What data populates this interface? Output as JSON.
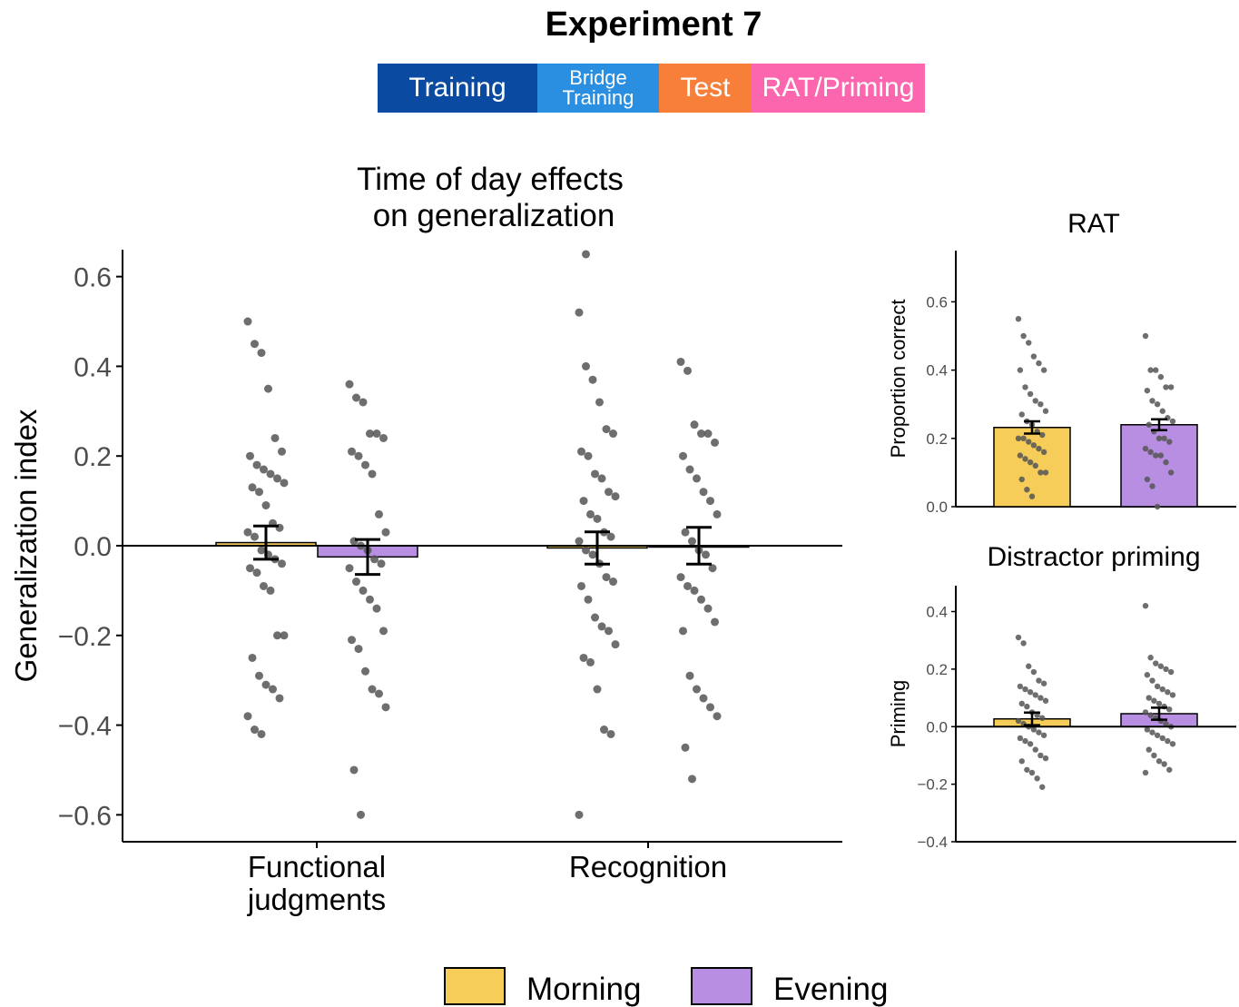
{
  "header": {
    "title": "Experiment 7",
    "phases": [
      {
        "label": "Training",
        "color": "#0a4aa0"
      },
      {
        "label": "Bridge Training",
        "color": "#2a8fe0"
      },
      {
        "label": "Test",
        "color": "#f77f39"
      },
      {
        "label": "RAT/Priming",
        "color": "#fc66ae"
      }
    ]
  },
  "colors": {
    "morning": "#f7cd5a",
    "evening": "#b88ee2",
    "points": "#555555"
  },
  "legend": {
    "morning": "Morning",
    "evening": "Evening"
  },
  "chart_data": [
    {
      "type": "bar",
      "title_line1": "Time of day effects",
      "title_line2": "on generalization",
      "ylabel": "Generalization index",
      "ylim": [
        -0.66,
        0.66
      ],
      "yticks": [
        "0.6",
        "0.4",
        "0.2",
        "0.0",
        "−0.2",
        "−0.4",
        "−0.6"
      ],
      "categories": [
        "Functional judgments",
        "Recognition"
      ],
      "category_lines": [
        [
          "Functional",
          "judgments"
        ],
        [
          "Recognition"
        ]
      ],
      "series": [
        {
          "name": "Morning",
          "values": [
            0.007,
            -0.005
          ],
          "errors": [
            0.037,
            0.036
          ]
        },
        {
          "name": "Evening",
          "values": [
            -0.025,
            0.0
          ],
          "errors": [
            0.039,
            0.041
          ]
        }
      ],
      "points": {
        "Functional judgments": {
          "Morning": [
            0.5,
            0.45,
            0.43,
            0.35,
            0.24,
            0.21,
            0.2,
            0.18,
            0.17,
            0.16,
            0.15,
            0.14,
            0.13,
            0.12,
            0.09,
            0.05,
            0.04,
            0.03,
            0.02,
            -0.01,
            -0.02,
            -0.03,
            -0.04,
            -0.05,
            -0.06,
            -0.09,
            -0.1,
            -0.2,
            -0.2,
            -0.25,
            -0.29,
            -0.31,
            -0.32,
            -0.34,
            -0.38,
            -0.41,
            -0.42
          ],
          "Evening": [
            0.36,
            0.33,
            0.32,
            0.25,
            0.25,
            0.24,
            0.21,
            0.2,
            0.18,
            0.16,
            0.07,
            0.03,
            0.01,
            0.0,
            -0.01,
            -0.03,
            -0.04,
            -0.05,
            -0.08,
            -0.1,
            -0.12,
            -0.14,
            -0.19,
            -0.21,
            -0.23,
            -0.28,
            -0.32,
            -0.33,
            -0.36,
            -0.5,
            -0.6
          ]
        },
        "Recognition": {
          "Morning": [
            0.52,
            0.4,
            0.37,
            0.32,
            0.26,
            0.25,
            0.21,
            0.2,
            0.16,
            0.15,
            0.12,
            0.11,
            0.1,
            0.07,
            0.06,
            0.03,
            0.02,
            0.01,
            -0.01,
            -0.02,
            -0.04,
            -0.07,
            -0.08,
            -0.09,
            -0.12,
            -0.16,
            -0.18,
            -0.19,
            -0.22,
            -0.25,
            -0.26,
            -0.32,
            -0.41,
            -0.42,
            -0.6,
            0.65
          ],
          "Evening": [
            0.41,
            0.39,
            0.27,
            0.25,
            0.25,
            0.23,
            0.2,
            0.17,
            0.15,
            0.12,
            0.1,
            0.07,
            0.03,
            0.01,
            -0.01,
            -0.02,
            -0.05,
            -0.07,
            -0.09,
            -0.1,
            -0.12,
            -0.14,
            -0.17,
            -0.19,
            -0.29,
            -0.32,
            -0.34,
            -0.36,
            -0.38,
            -0.45,
            -0.52
          ]
        }
      }
    },
    {
      "type": "bar",
      "title": "RAT",
      "ylabel": "Proportion correct",
      "ylim": [
        0,
        0.75
      ],
      "yticks": [
        "0.0",
        "0.2",
        "0.4",
        "0.6"
      ],
      "categories": [
        "Morning",
        "Evening"
      ],
      "series": [
        {
          "name": "",
          "values": [
            0.232,
            0.24
          ],
          "errors": [
            0.018,
            0.016
          ]
        }
      ],
      "points": {
        "Morning": [
          0.55,
          0.5,
          0.48,
          0.44,
          0.42,
          0.4,
          0.4,
          0.35,
          0.33,
          0.31,
          0.3,
          0.28,
          0.27,
          0.25,
          0.24,
          0.22,
          0.21,
          0.2,
          0.2,
          0.19,
          0.18,
          0.17,
          0.16,
          0.15,
          0.14,
          0.13,
          0.12,
          0.1,
          0.1,
          0.08,
          0.05,
          0.03
        ],
        "Evening": [
          0.5,
          0.4,
          0.4,
          0.38,
          0.35,
          0.35,
          0.34,
          0.31,
          0.3,
          0.28,
          0.26,
          0.25,
          0.24,
          0.22,
          0.2,
          0.2,
          0.19,
          0.17,
          0.16,
          0.15,
          0.15,
          0.13,
          0.1,
          0.08,
          0.06,
          0.0
        ]
      }
    },
    {
      "type": "bar",
      "title": "Distractor priming",
      "ylabel": "Priming",
      "ylim": [
        -0.4,
        0.49
      ],
      "yticks": [
        "0.4",
        "0.2",
        "0.0",
        "−0.2",
        "−0.4"
      ],
      "categories": [
        "Morning",
        "Evening"
      ],
      "series": [
        {
          "name": "",
          "values": [
            0.027,
            0.045
          ],
          "errors": [
            0.022,
            0.021
          ]
        }
      ],
      "points": {
        "Morning": [
          0.31,
          0.29,
          0.21,
          0.19,
          0.16,
          0.15,
          0.14,
          0.13,
          0.12,
          0.11,
          0.1,
          0.09,
          0.08,
          0.07,
          0.05,
          0.04,
          0.03,
          0.02,
          0.01,
          0.0,
          -0.01,
          -0.02,
          -0.03,
          -0.04,
          -0.05,
          -0.06,
          -0.08,
          -0.1,
          -0.11,
          -0.12,
          -0.15,
          -0.16,
          -0.18,
          -0.21
        ],
        "Evening": [
          0.42,
          0.24,
          0.22,
          0.21,
          0.2,
          0.19,
          0.18,
          0.16,
          0.14,
          0.13,
          0.12,
          0.11,
          0.1,
          0.09,
          0.08,
          0.07,
          0.06,
          0.05,
          0.04,
          0.03,
          0.02,
          0.01,
          0.0,
          -0.01,
          -0.02,
          -0.03,
          -0.04,
          -0.05,
          -0.06,
          -0.08,
          -0.1,
          -0.12,
          -0.13,
          -0.15,
          -0.16
        ]
      }
    }
  ]
}
